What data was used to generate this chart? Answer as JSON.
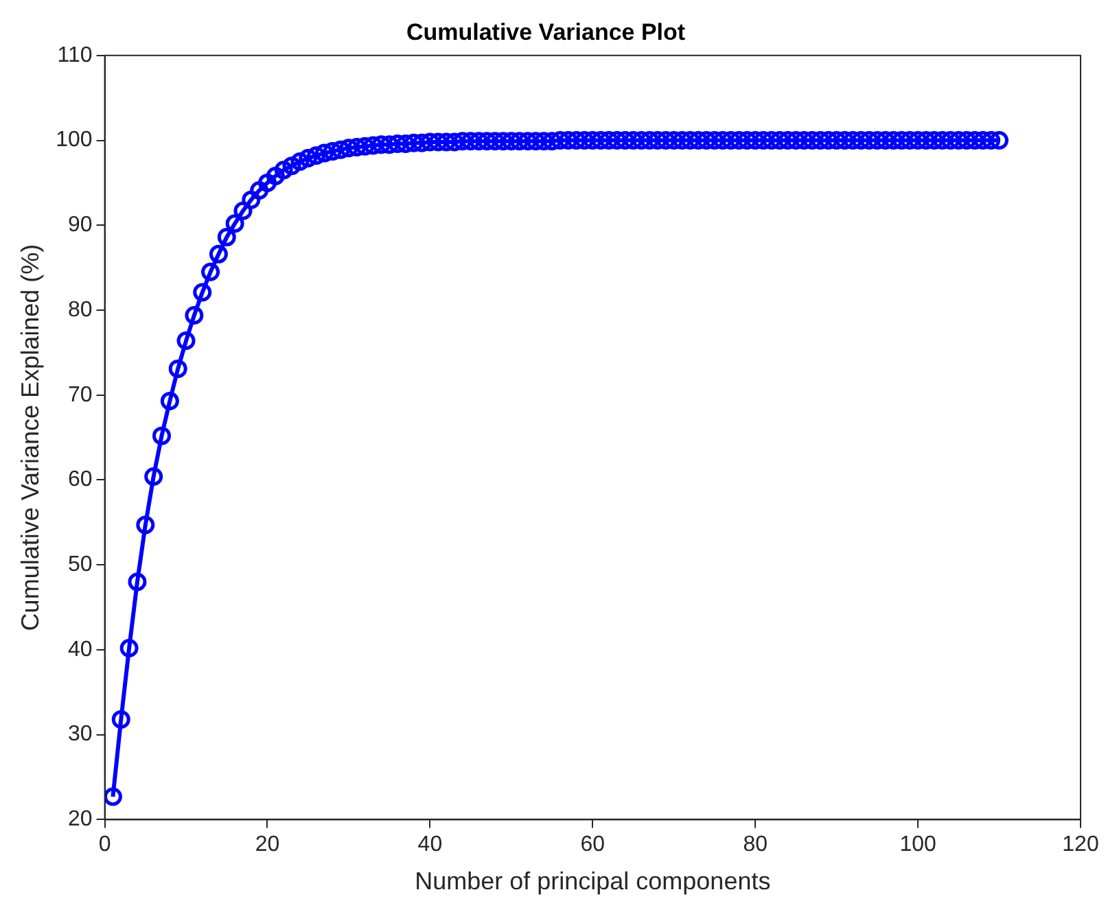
{
  "chart_data": {
    "type": "line",
    "title": "Cumulative Variance Plot",
    "xlabel": "Number of principal components",
    "ylabel": "Cumulative Variance Explained (%)",
    "x": [
      1,
      2,
      3,
      4,
      5,
      6,
      7,
      8,
      9,
      10,
      11,
      12,
      13,
      14,
      15,
      16,
      17,
      18,
      19,
      20,
      21,
      22,
      23,
      24,
      25,
      26,
      27,
      28,
      29,
      30,
      31,
      32,
      33,
      34,
      35,
      36,
      37,
      38,
      39,
      40,
      41,
      42,
      43,
      44,
      45,
      46,
      47,
      48,
      49,
      50,
      51,
      52,
      53,
      54,
      55,
      56,
      57,
      58,
      59,
      60,
      61,
      62,
      63,
      64,
      65,
      66,
      67,
      68,
      69,
      70,
      71,
      72,
      73,
      74,
      75,
      76,
      77,
      78,
      79,
      80,
      81,
      82,
      83,
      84,
      85,
      86,
      87,
      88,
      89,
      90,
      91,
      92,
      93,
      94,
      95,
      96,
      97,
      98,
      99,
      100,
      101,
      102,
      103,
      104,
      105,
      106,
      107,
      108,
      109,
      110
    ],
    "series": [
      {
        "color": "#0000ff",
        "values": [
          22.7,
          31.8,
          40.2,
          48.0,
          54.7,
          60.4,
          65.2,
          69.3,
          73.1,
          76.4,
          79.4,
          82.1,
          84.5,
          86.6,
          88.6,
          90.2,
          91.7,
          93.0,
          94.1,
          95.0,
          95.8,
          96.5,
          97.0,
          97.5,
          97.9,
          98.2,
          98.5,
          98.7,
          98.9,
          99.1,
          99.2,
          99.3,
          99.4,
          99.5,
          99.5,
          99.6,
          99.6,
          99.7,
          99.7,
          99.8,
          99.8,
          99.8,
          99.8,
          99.9,
          99.9,
          99.9,
          99.9,
          99.9,
          99.9,
          99.9,
          99.9,
          99.9,
          99.9,
          99.9,
          99.9,
          100,
          100,
          100,
          100,
          100,
          100,
          100,
          100,
          100,
          100,
          100,
          100,
          100,
          100,
          100,
          100,
          100,
          100,
          100,
          100,
          100,
          100,
          100,
          100,
          100,
          100,
          100,
          100,
          100,
          100,
          100,
          100,
          100,
          100,
          100,
          100,
          100,
          100,
          100,
          100,
          100,
          100,
          100,
          100,
          100,
          100,
          100,
          100,
          100,
          100,
          100,
          100,
          100,
          100,
          100
        ]
      }
    ],
    "xlim": [
      0,
      120
    ],
    "xticks": [
      0,
      20,
      40,
      60,
      80,
      100,
      120
    ],
    "ylim": [
      20,
      110
    ],
    "yticks": [
      20,
      30,
      40,
      50,
      60,
      70,
      80,
      90,
      100,
      110
    ],
    "grid": false,
    "legend": false,
    "marker": "circle",
    "line_style": "solid"
  }
}
